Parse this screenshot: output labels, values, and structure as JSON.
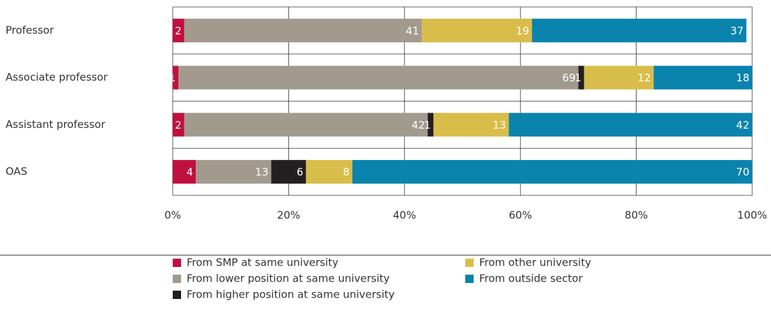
{
  "chart_data": {
    "type": "stacked-bar-horizontal",
    "categories": [
      "Professor",
      "Associate professor",
      "Assistant professor",
      "OAS"
    ],
    "series": [
      {
        "name": "From SMP at same university",
        "color": "#c0103f",
        "values": [
          2,
          1,
          2,
          4
        ]
      },
      {
        "name": "From lower position at same university",
        "color": "#a29a8d",
        "values": [
          41,
          69,
          42,
          13
        ]
      },
      {
        "name": "From higher position at same university",
        "color": "#231f20",
        "values": [
          null,
          1,
          1,
          6
        ]
      },
      {
        "name": "From other university",
        "color": "#d9bd4a",
        "values": [
          19,
          12,
          13,
          8
        ]
      },
      {
        "name": "From outside sector",
        "color": "#0a83ad",
        "values": [
          37,
          18,
          42,
          70
        ]
      }
    ],
    "xlim": [
      0,
      100
    ],
    "xticks": [
      {
        "value": 0,
        "label": "0%"
      },
      {
        "value": 20,
        "label": "20%"
      },
      {
        "value": 40,
        "label": "40%"
      },
      {
        "value": 60,
        "label": "60%"
      },
      {
        "value": 80,
        "label": "80%"
      },
      {
        "value": 100,
        "label": "100%"
      }
    ],
    "grid": true
  }
}
